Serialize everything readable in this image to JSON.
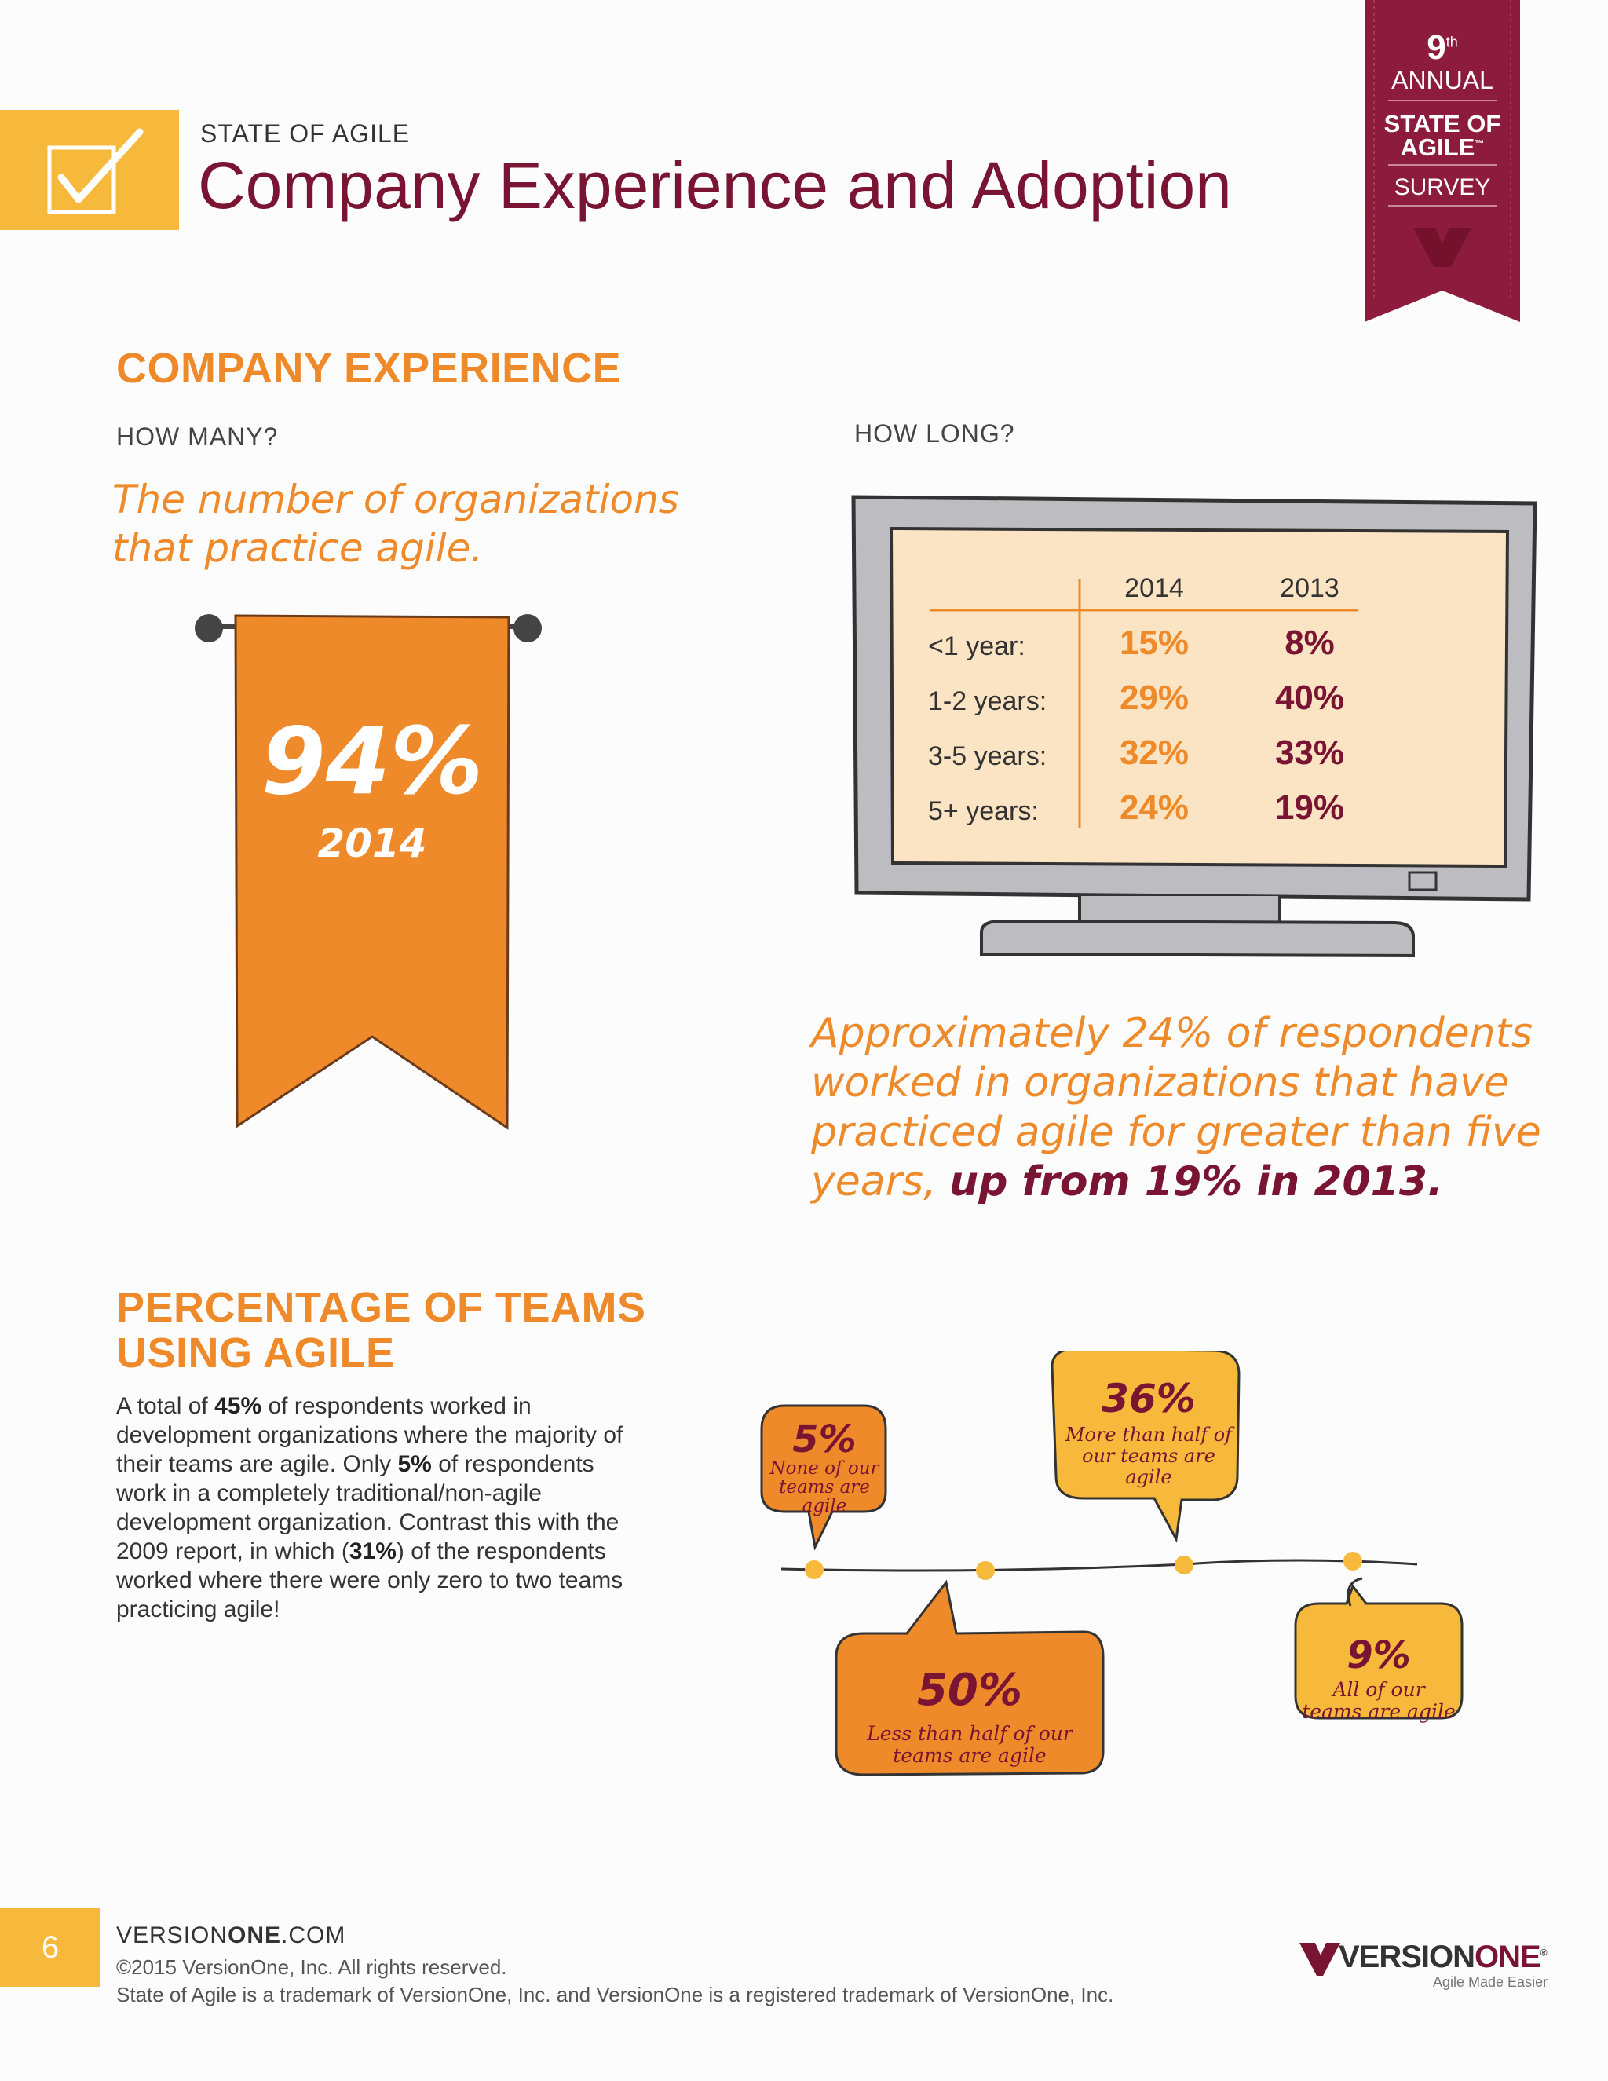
{
  "header": {
    "kicker": "STATE OF AGILE",
    "title": "Company Experience and Adoption"
  },
  "ribbon": {
    "number": "9",
    "suffix": "th",
    "annual": "ANNUAL",
    "line1": "STATE OF",
    "line2": "AGILE",
    "tm": "™",
    "survey": "SURVEY"
  },
  "company_experience": {
    "heading": "COMPANY EXPERIENCE",
    "how_many": "HOW MANY?",
    "how_long": "HOW LONG?",
    "quote_line1": "The number of organizations",
    "quote_line2": "that practice agile.",
    "banner_percent": "94%",
    "banner_year": "2014"
  },
  "chart_data": {
    "type": "table",
    "columns": [
      "2014",
      "2013"
    ],
    "rows": [
      {
        "label": "<1 year:",
        "v2014": "15%",
        "v2013": "8%"
      },
      {
        "label": "1-2 years:",
        "v2014": "29%",
        "v2013": "40%"
      },
      {
        "label": "3-5 years:",
        "v2014": "32%",
        "v2013": "33%"
      },
      {
        "label": "5+ years:",
        "v2014": "24%",
        "v2013": "19%"
      }
    ]
  },
  "caption": {
    "part1": "Approximately 24% of respondents worked in organizations that have practiced agile for greater than five years,",
    "part2": "up from 19% in 2013."
  },
  "teams": {
    "heading_line1": "PERCENTAGE OF TEAMS",
    "heading_line2": "USING AGILE",
    "body": {
      "t1": "A total of ",
      "b1": "45%",
      "t2": " of respondents worked in development organizations where the majority of their teams are agile. Only ",
      "b2": "5%",
      "t3": " of respondents work in a completely traditional/non-agile development organization. Contrast this with the 2009 report, in which (",
      "b3": "31%",
      "t4": ") of the respondents worked where there were only zero to two teams practicing agile!"
    },
    "bubbles": [
      {
        "percent": "5%",
        "l1": "None of our",
        "l2": "teams are",
        "l3": "agile"
      },
      {
        "percent": "50%",
        "l1": "Less than half of our",
        "l2": "teams are agile"
      },
      {
        "percent": "36%",
        "l1": "More than half of",
        "l2": "our teams are",
        "l3": "agile"
      },
      {
        "percent": "9%",
        "l1": "All of our",
        "l2": "teams are agile"
      }
    ]
  },
  "footer": {
    "page": "6",
    "url_a": "VERSION",
    "url_b": "ONE",
    "url_c": ".COM",
    "copyright": "©2015 VersionOne, Inc. All rights reserved.",
    "trademark": "State of Agile is a trademark of VersionOne, Inc. and VersionOne is a registered trademark of VersionOne, Inc.",
    "logo_a": "VERSION",
    "logo_b": "ONE",
    "logo_reg": "®",
    "tagline": "Agile Made Easier"
  },
  "colors": {
    "orange": "#ef8a2b",
    "maroon": "#7a1433",
    "gold": "#f6b93b",
    "banner": "#ef8a2b"
  }
}
